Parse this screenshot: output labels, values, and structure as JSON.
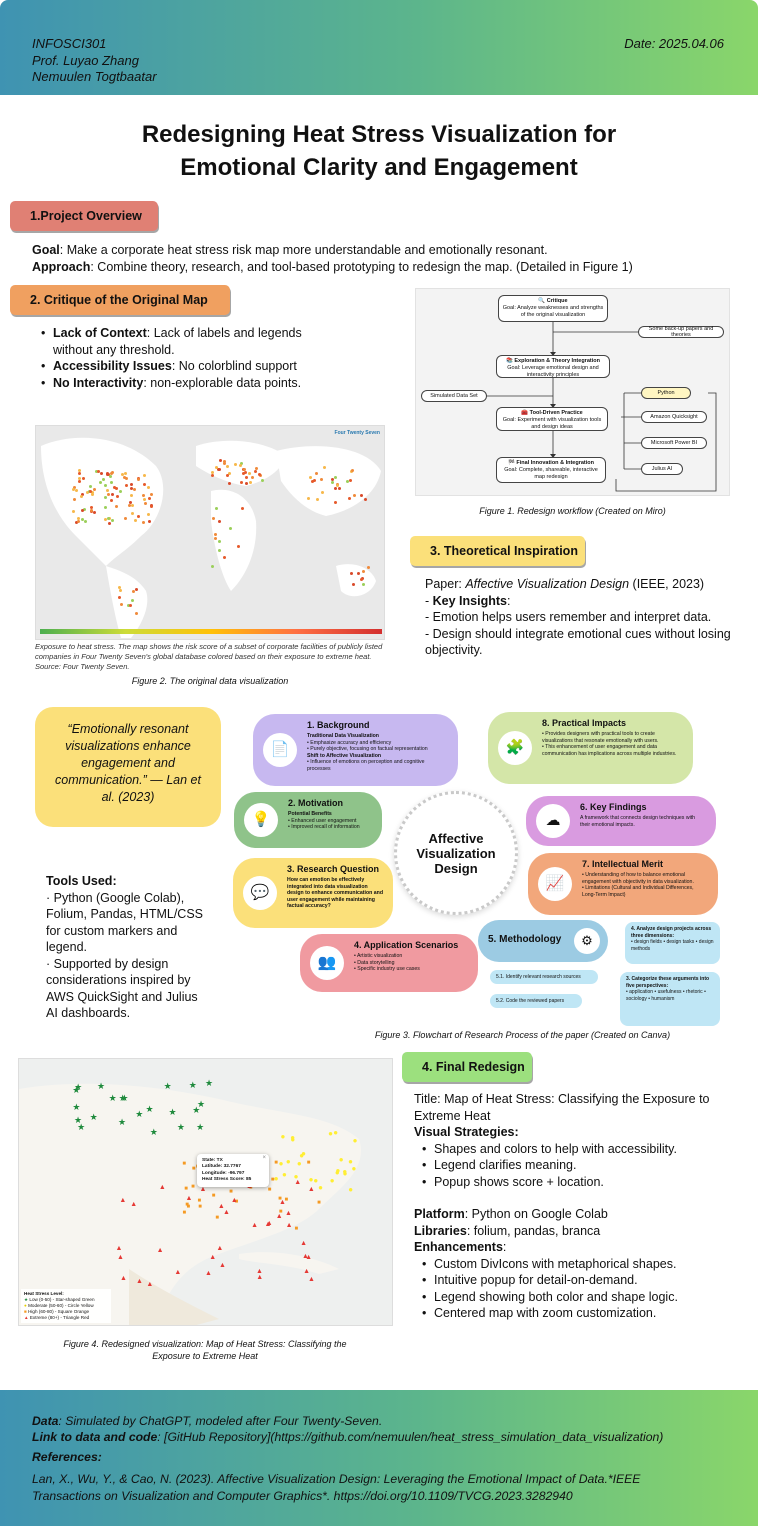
{
  "header": {
    "course": "INFOSCI301",
    "professor": "Prof. Luyao Zhang",
    "author": "Nemuulen Togtbaatar",
    "date": "Date: 2025.04.06"
  },
  "title_line1": "Redesigning Heat Stress Visualization for",
  "title_line2": "Emotional Clarity and Engagement",
  "overview": {
    "heading": "1.Project Overview",
    "goal_label": "Goal",
    "goal_text": ": Make a corporate heat stress risk map more understandable and emotionally resonant.",
    "approach_label": "Approach",
    "approach_text": ": Combine theory, research, and tool-based prototyping to redesign the map.  (Detailed in Figure 1)"
  },
  "critique": {
    "heading": "2. Critique of the Original Map",
    "items": [
      {
        "label": "Lack of Context",
        "text": ": Lack of labels and legends without any threshold."
      },
      {
        "label": "Accessibility Issues",
        "text": ": No colorblind support"
      },
      {
        "label": "No Interactivity",
        "text": ": non-explorable data points."
      }
    ]
  },
  "figure1": {
    "boxes": [
      {
        "title": "🔍 Critique",
        "text": "Goal: Analyze weaknesses and strengths of the original visualization"
      },
      {
        "title": "📚 Exploration & Theory Integration",
        "text": "Goal: Leverage emotional design and interactivity principles"
      },
      {
        "title": "🧰 Tool-Driven Practice",
        "text": "Goal: Experiment with visualization tools and design ideas"
      },
      {
        "title": "🏁 Final Innovation & Integration",
        "text": "Goal: Complete, shareable, interactive map redesign"
      }
    ],
    "backup": "Some back-up papers and theories",
    "dataset": "Simulated Data Set",
    "tools": [
      "Python",
      "Amazon Quicksight",
      "Microsoft Power BI",
      "Julius AI"
    ],
    "caption": "Figure 1. Redesign workflow (Created on Miro)"
  },
  "original_map": {
    "brand": "Four Twenty Seven",
    "caption_text": "Exposure to heat stress. The map shows the risk score of a subset of corporate facilities of publicly listed companies in Four Twenty Seven's global database colored based on their exposure to extreme heat. Source: Four Twenty Seven.",
    "figure_caption": "Figure 2. The original data visualization"
  },
  "theory": {
    "heading": "3. Theoretical Inspiration",
    "paper_prefix": "Paper: ",
    "paper_title": "Affective Visualization Design",
    "paper_suffix": " (IEEE, 2023)",
    "insights_label": "Key Insights",
    "insight1": " - Emotion helps users remember and interpret data.",
    "insight2": " - Design should integrate emotional cues without losing objectivity."
  },
  "quote": "“Emotionally resonant visualizations enhance engagement and communication.” — Lan et al. (2023)",
  "tools_used": {
    "label": "Tools Used:",
    "line1": "· Python (Google Colab), Folium, Pandas, HTML/CSS for custom markers and legend.",
    "line2": "· Supported by design considerations inspired by AWS QuickSight and Julius AI dashboards."
  },
  "figure3": {
    "center": "Affective Visualization Design",
    "background": {
      "title": "1. Background",
      "l1": "Traditional Data Visualization",
      "l2": "• Emphasize accuracy and efficiency",
      "l3": "• Purely objective, focusing on factual representation",
      "l4": "Shift to Affective Visualization",
      "l5": "• Influence of emotions on perception and cognitive processes"
    },
    "motivation": {
      "title": "2. Motivation",
      "l1": "Potential Benefits",
      "l2": "• Enhanced user engagement",
      "l3": "• Improved recall of information"
    },
    "question": {
      "title": "3. Research Question",
      "l1": "How can emotion be effectively integrated into data visualization design to enhance communication and user engagement while maintaining factual accuracy?"
    },
    "scenarios": {
      "title": "4. Application Scenarios",
      "l1": "• Artistic visualization",
      "l2": "• Data storytelling",
      "l3": "• Specific industry use cases"
    },
    "methodology": {
      "title": "5. Methodology",
      "s1": "5.1. Identify relevant research sources",
      "s2": "5.2. Code the reviewed papers",
      "s3a": "4. Analyze design projects across three dimensions:",
      "s3b": "• design fields • design tasks • design methods",
      "s4a": "3. Categorize these arguments into five perspectives:",
      "s4b": "• application • usefulness • rhetoric • sociology • humanism"
    },
    "findings": {
      "title": "6. Key Findings",
      "l1": "A framework that connects design techniques with their emotional impacts."
    },
    "merit": {
      "title": "7. Intellectual Merit",
      "l1": "• Understanding of how to balance emotional engagement with objectivity in data visualization.",
      "l2": "• Limitations (Cultural and Individual Differences, Long-Term Impact)"
    },
    "impacts": {
      "title": "8. Practical Impacts",
      "l1": "• Provides designers with practical tools to create visualizations that resonate emotionally with users.",
      "l2": "• This enhancement of user engagement and data communication has implications across multiple industries."
    },
    "caption": "Figure 3. Flowchart of Research Process of the paper (Created on Canva)"
  },
  "final_map": {
    "popup": {
      "state": "State: TX",
      "lat": "Latitude: 32.7767",
      "lon": "Longitude: -96.797",
      "score": "Heat Stress Score: 85"
    },
    "legend_title": "Heat Stress Level:",
    "legend": [
      "Low (0-50) - Star-shaped Green",
      "Moderate (50-60) - Circle Yellow",
      "High (60-80) - Square Orange",
      "Extreme (80+) - Triangle Red"
    ],
    "caption_line1": "Figure 4. Redesigned visualization: Map of Heat Stress: Classifying the",
    "caption_line2": "Exposure to Extreme Heat",
    "colors": {
      "low": "#1e8a3c",
      "moderate": "#ffee33",
      "high": "#f59a23",
      "extreme": "#e53935"
    }
  },
  "final": {
    "heading": "4. Final Redesign",
    "title_text": "Title: Map of Heat Stress: Classifying the Exposure to Extreme Heat",
    "strategies_label": "Visual Strategies",
    "strategies": [
      "Shapes and colors to help with accessibility.",
      "Legend clarifies meaning.",
      "Popup shows score + location."
    ],
    "platform_label": "Platform",
    "platform_text": ": Python on Google Colab",
    "libraries_label": "Libraries",
    "libraries_text": ": folium, pandas, branca",
    "enhancements_label": "Enhancements",
    "enhancements": [
      "Custom DivIcons with metaphorical shapes.",
      "Intuitive popup for detail-on-demand.",
      "Legend showing both color and shape logic.",
      "Centered map with zoom customization."
    ]
  },
  "footer": {
    "data_label": "Data",
    "data_text": ": Simulated by ChatGPT, modeled after Four Twenty-Seven.",
    "link_label": "Link to data and code",
    "link_text": ": [GitHub Repository](https://github.com/nemuulen/heat_stress_simulation_data_visualization)",
    "refs_label": "References:",
    "ref_line1": "Lan, X., Wu, Y., & Cao, N. (2023). Affective Visualization Design: Leveraging the Emotional Impact of Data.*IEEE",
    "ref_line2": "Transactions on Visualization and Computer Graphics*. https://doi.org/10.1109/TVCG.2023.3282940"
  }
}
